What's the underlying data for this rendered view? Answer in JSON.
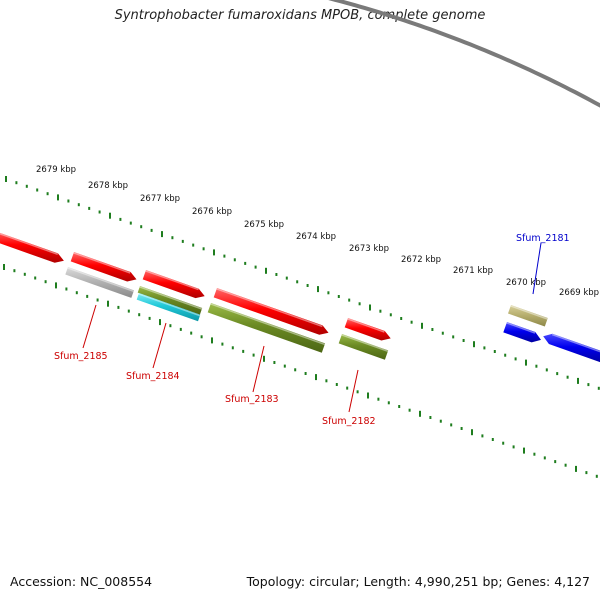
{
  "title": "Syntrophobacter fumaroxidans MPOB, complete genome",
  "accession_text": "Accession: NC_008554",
  "summary_text": "Topology: circular; Length: 4,990,251 bp; Genes: 4,127",
  "colors": {
    "backbone": "#7a7a7a",
    "tick": "#1e7d1e",
    "forward_gene": "#e00000",
    "reverse_gene": "#0000e0",
    "olive": "#6b8a24",
    "khaki": "#b8b070",
    "grey": "#b0b0b0",
    "cyan": "#20c8d8",
    "label_red": "#cc0000",
    "label_blue": "#0000cc"
  },
  "scale_labels": [
    "2679 kbp",
    "2678 kbp",
    "2677 kbp",
    "2676 kbp",
    "2675 kbp",
    "2674 kbp",
    "2673 kbp",
    "2672 kbp",
    "2671 kbp",
    "2670 kbp",
    "2669 kbp"
  ],
  "gene_labels": [
    {
      "text": "Sfum_2185",
      "color": "label_red"
    },
    {
      "text": "Sfum_2184",
      "color": "label_red"
    },
    {
      "text": "Sfum_2183",
      "color": "label_red"
    },
    {
      "text": "Sfum_2182",
      "color": "label_red"
    },
    {
      "text": "Sfum_2181",
      "color": "label_blue"
    }
  ]
}
